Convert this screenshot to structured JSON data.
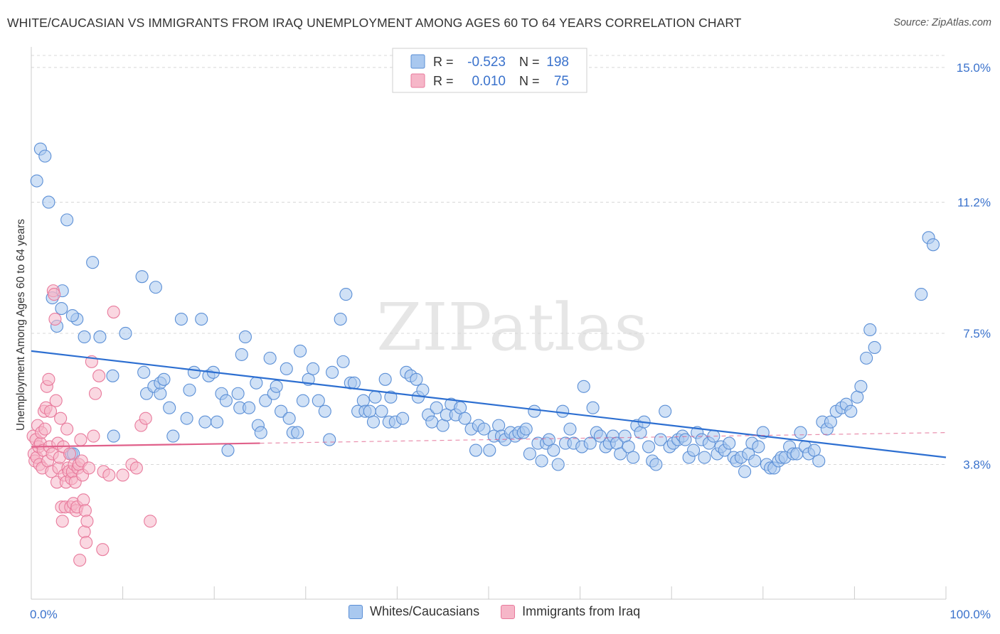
{
  "title": "WHITE/CAUCASIAN VS IMMIGRANTS FROM IRAQ UNEMPLOYMENT AMONG AGES 60 TO 64 YEARS CORRELATION CHART",
  "source": "Source: ZipAtlas.com",
  "watermark": "ZIPatlas",
  "colors": {
    "blue_fill": "#a9c8ef",
    "blue_stroke": "#5b8fd6",
    "blue_line": "#2d6fd1",
    "pink_fill": "#f6b6c8",
    "pink_stroke": "#e87a9c",
    "pink_line": "#e0608a",
    "value_text": "#3a72cc",
    "grid": "#d8d8d8"
  },
  "legend_box": {
    "rows": [
      {
        "r_label": "R =",
        "r_value": "-0.523",
        "n_label": "N =",
        "n_value": "198",
        "series": "blue"
      },
      {
        "r_label": "R =",
        "r_value": "0.010",
        "n_label": "N =",
        "n_value": "75",
        "series": "pink"
      }
    ]
  },
  "legend_bottom": [
    {
      "label": "Whites/Caucasians",
      "series": "blue"
    },
    {
      "label": "Immigrants from Iraq",
      "series": "pink"
    }
  ],
  "chart_data": {
    "type": "scatter",
    "xlabel": "",
    "ylabel": "Unemployment Among Ages 60 to 64 years",
    "xlim": [
      0,
      100
    ],
    "ylim": [
      0,
      15.5
    ],
    "x_tick_labels": [
      {
        "value": 0,
        "label": "0.0%"
      },
      {
        "value": 100,
        "label": "100.0%"
      }
    ],
    "y_tick_labels": [
      {
        "value": 3.8,
        "label": "3.8%"
      },
      {
        "value": 7.5,
        "label": "7.5%"
      },
      {
        "value": 11.2,
        "label": "11.2%"
      },
      {
        "value": 15.0,
        "label": "15.0%"
      }
    ],
    "grid": "horizontal dashed",
    "series": [
      {
        "name": "Whites/Caucasians",
        "color": "blue",
        "r": -0.523,
        "n": 198,
        "trend": {
          "x": [
            0,
            100
          ],
          "y": [
            7.0,
            4.0
          ],
          "style": "solid"
        },
        "points": [
          [
            1.0,
            12.7
          ],
          [
            1.5,
            12.5
          ],
          [
            0.6,
            11.8
          ],
          [
            1.9,
            11.2
          ],
          [
            3.9,
            10.7
          ],
          [
            4.4,
            4.1
          ],
          [
            4.6,
            4.1
          ],
          [
            6.7,
            9.5
          ],
          [
            3.4,
            8.7
          ],
          [
            5.0,
            7.9
          ],
          [
            4.5,
            8.0
          ],
          [
            2.3,
            8.5
          ],
          [
            3.3,
            8.2
          ],
          [
            2.8,
            7.7
          ],
          [
            5.8,
            7.4
          ],
          [
            7.5,
            7.4
          ],
          [
            8.9,
            6.3
          ],
          [
            9.0,
            4.6
          ],
          [
            10.3,
            7.5
          ],
          [
            12.3,
            6.4
          ],
          [
            12.6,
            5.8
          ],
          [
            12.1,
            9.1
          ],
          [
            13.6,
            8.8
          ],
          [
            13.4,
            6.0
          ],
          [
            14.1,
            5.8
          ],
          [
            14.1,
            6.1
          ],
          [
            14.5,
            6.2
          ],
          [
            15.1,
            5.4
          ],
          [
            15.5,
            4.6
          ],
          [
            16.4,
            7.9
          ],
          [
            17.0,
            5.1
          ],
          [
            17.3,
            5.9
          ],
          [
            17.8,
            6.4
          ],
          [
            18.6,
            7.9
          ],
          [
            19.0,
            5.0
          ],
          [
            19.4,
            6.3
          ],
          [
            19.9,
            6.4
          ],
          [
            20.3,
            5.0
          ],
          [
            20.8,
            5.8
          ],
          [
            21.5,
            4.2
          ],
          [
            21.3,
            5.6
          ],
          [
            22.6,
            5.8
          ],
          [
            22.8,
            5.4
          ],
          [
            23.0,
            6.9
          ],
          [
            23.4,
            7.4
          ],
          [
            23.8,
            5.4
          ],
          [
            24.6,
            6.1
          ],
          [
            24.8,
            4.9
          ],
          [
            25.1,
            4.7
          ],
          [
            25.6,
            5.6
          ],
          [
            26.1,
            6.8
          ],
          [
            26.5,
            5.8
          ],
          [
            26.8,
            6.0
          ],
          [
            27.3,
            5.3
          ],
          [
            27.9,
            6.5
          ],
          [
            28.2,
            5.1
          ],
          [
            28.6,
            4.7
          ],
          [
            29.1,
            4.7
          ],
          [
            29.4,
            7.0
          ],
          [
            29.7,
            5.6
          ],
          [
            30.3,
            6.2
          ],
          [
            30.8,
            6.5
          ],
          [
            31.4,
            5.6
          ],
          [
            32.1,
            5.3
          ],
          [
            32.6,
            4.5
          ],
          [
            32.9,
            6.4
          ],
          [
            33.8,
            7.9
          ],
          [
            34.1,
            6.7
          ],
          [
            34.4,
            8.6
          ],
          [
            34.9,
            6.1
          ],
          [
            35.3,
            6.1
          ],
          [
            35.7,
            5.3
          ],
          [
            36.3,
            5.6
          ],
          [
            36.5,
            5.3
          ],
          [
            37.0,
            5.3
          ],
          [
            37.4,
            5.0
          ],
          [
            37.6,
            5.7
          ],
          [
            38.3,
            5.3
          ],
          [
            38.7,
            6.2
          ],
          [
            39.1,
            5.0
          ],
          [
            39.3,
            5.7
          ],
          [
            39.8,
            5.0
          ],
          [
            40.6,
            5.1
          ],
          [
            41.0,
            6.4
          ],
          [
            41.5,
            6.3
          ],
          [
            42.1,
            6.2
          ],
          [
            42.3,
            5.7
          ],
          [
            42.8,
            5.9
          ],
          [
            43.4,
            5.2
          ],
          [
            43.8,
            5.0
          ],
          [
            44.3,
            5.4
          ],
          [
            45.0,
            4.9
          ],
          [
            45.4,
            5.2
          ],
          [
            45.9,
            5.5
          ],
          [
            46.4,
            5.2
          ],
          [
            46.9,
            5.4
          ],
          [
            47.4,
            5.1
          ],
          [
            48.1,
            4.8
          ],
          [
            48.6,
            4.2
          ],
          [
            48.9,
            4.9
          ],
          [
            49.5,
            4.8
          ],
          [
            50.1,
            4.2
          ],
          [
            50.6,
            4.6
          ],
          [
            51.1,
            4.9
          ],
          [
            51.4,
            4.6
          ],
          [
            51.8,
            4.5
          ],
          [
            52.4,
            4.7
          ],
          [
            52.9,
            4.6
          ],
          [
            53.3,
            4.7
          ],
          [
            53.8,
            4.7
          ],
          [
            54.1,
            4.8
          ],
          [
            54.5,
            4.1
          ],
          [
            55.0,
            5.3
          ],
          [
            55.4,
            4.4
          ],
          [
            55.8,
            3.9
          ],
          [
            56.3,
            4.4
          ],
          [
            56.6,
            4.5
          ],
          [
            57.1,
            4.2
          ],
          [
            57.6,
            3.8
          ],
          [
            58.1,
            5.3
          ],
          [
            58.4,
            4.4
          ],
          [
            58.9,
            4.8
          ],
          [
            59.3,
            4.4
          ],
          [
            60.2,
            4.3
          ],
          [
            60.4,
            6.0
          ],
          [
            61.1,
            4.4
          ],
          [
            61.4,
            5.4
          ],
          [
            61.8,
            4.7
          ],
          [
            62.2,
            4.6
          ],
          [
            62.8,
            4.3
          ],
          [
            63.2,
            4.4
          ],
          [
            63.6,
            4.6
          ],
          [
            64.0,
            4.4
          ],
          [
            64.4,
            4.1
          ],
          [
            64.9,
            4.6
          ],
          [
            65.3,
            4.3
          ],
          [
            65.8,
            4.0
          ],
          [
            66.2,
            4.9
          ],
          [
            66.6,
            4.7
          ],
          [
            67.0,
            5.0
          ],
          [
            67.5,
            4.3
          ],
          [
            67.9,
            3.9
          ],
          [
            68.3,
            3.8
          ],
          [
            68.8,
            4.5
          ],
          [
            69.3,
            5.3
          ],
          [
            69.8,
            4.3
          ],
          [
            70.2,
            4.4
          ],
          [
            70.7,
            4.5
          ],
          [
            71.2,
            4.6
          ],
          [
            71.5,
            4.5
          ],
          [
            71.9,
            4.0
          ],
          [
            72.4,
            4.2
          ],
          [
            72.8,
            4.7
          ],
          [
            73.3,
            4.5
          ],
          [
            73.6,
            4.0
          ],
          [
            74.1,
            4.4
          ],
          [
            74.6,
            4.6
          ],
          [
            75.0,
            4.1
          ],
          [
            75.4,
            4.3
          ],
          [
            75.8,
            4.2
          ],
          [
            76.3,
            4.4
          ],
          [
            76.8,
            4.0
          ],
          [
            77.1,
            3.9
          ],
          [
            77.6,
            4.0
          ],
          [
            78.0,
            3.6
          ],
          [
            78.4,
            4.1
          ],
          [
            78.8,
            4.4
          ],
          [
            79.1,
            3.9
          ],
          [
            79.5,
            4.3
          ],
          [
            80.0,
            4.7
          ],
          [
            80.4,
            3.8
          ],
          [
            80.8,
            3.7
          ],
          [
            81.2,
            3.7
          ],
          [
            81.7,
            3.9
          ],
          [
            82.0,
            4.0
          ],
          [
            82.4,
            4.0
          ],
          [
            82.9,
            4.3
          ],
          [
            83.3,
            4.1
          ],
          [
            83.7,
            4.1
          ],
          [
            84.1,
            4.7
          ],
          [
            84.6,
            4.3
          ],
          [
            85.0,
            4.1
          ],
          [
            85.6,
            4.2
          ],
          [
            86.1,
            3.9
          ],
          [
            86.5,
            5.0
          ],
          [
            87.0,
            4.8
          ],
          [
            87.4,
            5.0
          ],
          [
            88.0,
            5.3
          ],
          [
            88.6,
            5.4
          ],
          [
            89.1,
            5.5
          ],
          [
            89.6,
            5.3
          ],
          [
            90.3,
            5.7
          ],
          [
            90.7,
            6.0
          ],
          [
            91.3,
            6.8
          ],
          [
            91.7,
            7.6
          ],
          [
            92.2,
            7.1
          ],
          [
            97.3,
            8.6
          ],
          [
            98.1,
            10.2
          ],
          [
            98.6,
            10.0
          ]
        ]
      },
      {
        "name": "Immigrants from Iraq",
        "color": "pink",
        "r": 0.01,
        "n": 75,
        "trend": {
          "x": [
            0,
            25
          ],
          "y": [
            4.3,
            4.4
          ],
          "style": "solid",
          "dashed_to": [
            100,
            4.7
          ]
        },
        "points": [
          [
            0.2,
            4.6
          ],
          [
            0.3,
            4.1
          ],
          [
            0.4,
            3.9
          ],
          [
            0.5,
            4.5
          ],
          [
            0.6,
            4.0
          ],
          [
            0.7,
            4.9
          ],
          [
            0.8,
            4.3
          ],
          [
            0.9,
            3.8
          ],
          [
            1.0,
            4.4
          ],
          [
            1.1,
            4.7
          ],
          [
            1.2,
            3.7
          ],
          [
            1.3,
            4.2
          ],
          [
            1.4,
            5.3
          ],
          [
            1.5,
            4.8
          ],
          [
            1.6,
            5.4
          ],
          [
            1.7,
            6.0
          ],
          [
            1.8,
            3.9
          ],
          [
            1.9,
            6.2
          ],
          [
            2.0,
            4.3
          ],
          [
            2.1,
            5.3
          ],
          [
            2.2,
            3.6
          ],
          [
            2.3,
            4.1
          ],
          [
            2.4,
            8.7
          ],
          [
            2.5,
            8.6
          ],
          [
            2.6,
            7.9
          ],
          [
            2.7,
            5.6
          ],
          [
            2.8,
            3.3
          ],
          [
            2.9,
            4.4
          ],
          [
            3.0,
            3.7
          ],
          [
            3.1,
            4.0
          ],
          [
            3.2,
            5.1
          ],
          [
            3.3,
            2.6
          ],
          [
            3.4,
            2.2
          ],
          [
            3.5,
            4.3
          ],
          [
            3.6,
            3.5
          ],
          [
            3.7,
            2.6
          ],
          [
            3.8,
            3.3
          ],
          [
            3.9,
            4.8
          ],
          [
            4.0,
            3.7
          ],
          [
            4.1,
            3.6
          ],
          [
            4.2,
            4.1
          ],
          [
            4.3,
            2.6
          ],
          [
            4.4,
            3.4
          ],
          [
            4.5,
            3.6
          ],
          [
            4.6,
            2.7
          ],
          [
            4.7,
            3.8
          ],
          [
            4.8,
            3.3
          ],
          [
            4.9,
            2.5
          ],
          [
            5.0,
            2.6
          ],
          [
            5.1,
            3.7
          ],
          [
            5.2,
            3.8
          ],
          [
            5.3,
            1.1
          ],
          [
            5.4,
            4.5
          ],
          [
            5.5,
            3.9
          ],
          [
            5.6,
            3.5
          ],
          [
            5.7,
            2.8
          ],
          [
            5.8,
            1.9
          ],
          [
            5.9,
            2.5
          ],
          [
            6.0,
            1.6
          ],
          [
            6.1,
            2.2
          ],
          [
            6.3,
            3.7
          ],
          [
            6.6,
            6.7
          ],
          [
            7.0,
            5.8
          ],
          [
            7.4,
            6.3
          ],
          [
            7.9,
            3.6
          ],
          [
            8.5,
            3.5
          ],
          [
            9.0,
            8.1
          ],
          [
            10.0,
            3.5
          ],
          [
            11.0,
            3.8
          ],
          [
            11.5,
            3.7
          ],
          [
            12.0,
            4.9
          ],
          [
            12.5,
            5.1
          ],
          [
            13.0,
            2.2
          ],
          [
            7.8,
            1.4
          ],
          [
            6.8,
            4.6
          ]
        ]
      }
    ]
  }
}
